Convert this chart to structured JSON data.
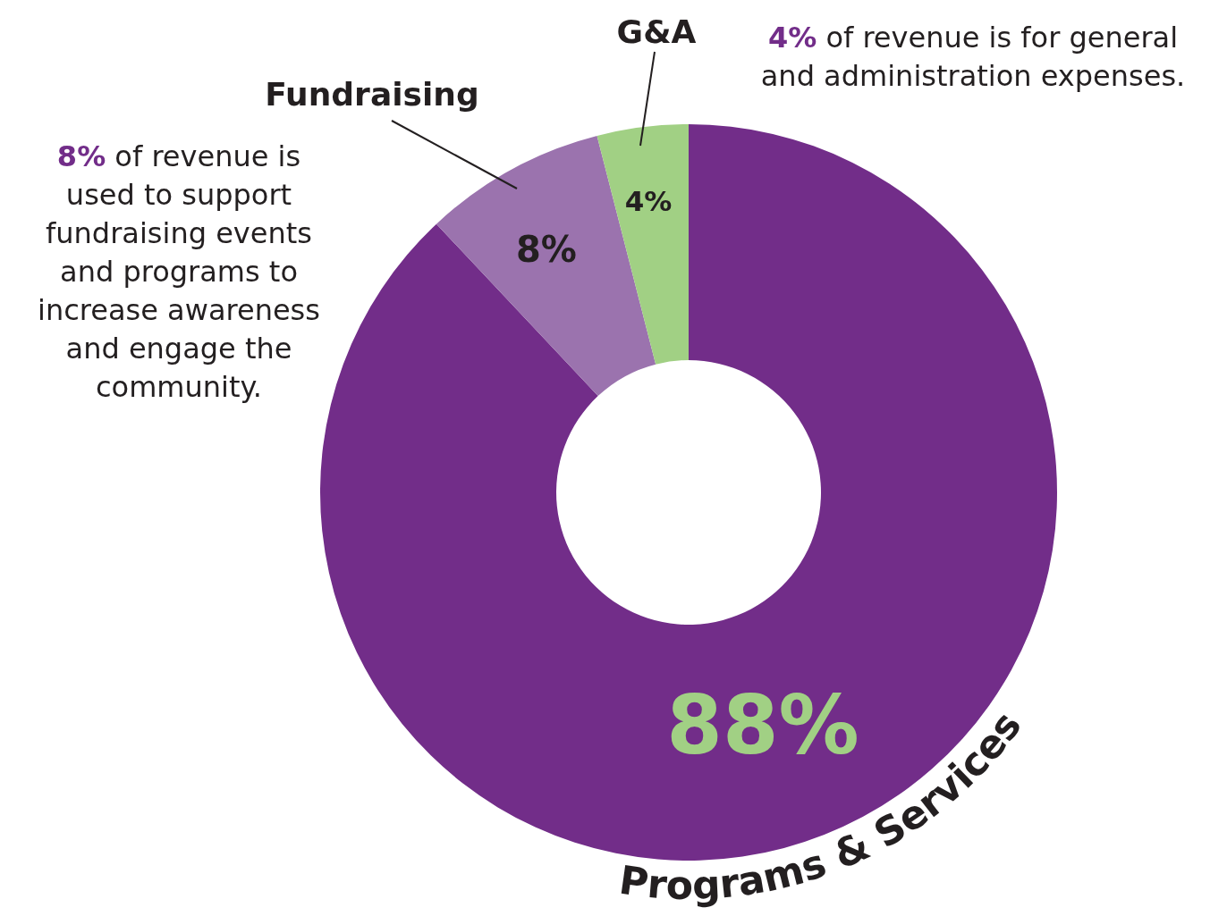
{
  "chart_data": {
    "type": "donut",
    "categories": [
      "Programs & Services",
      "Fundraising",
      "G&A"
    ],
    "values": [
      88,
      8,
      4
    ],
    "colors": [
      "#722d89",
      "#9b73ae",
      "#a1d084"
    ],
    "value_labels": [
      "88%",
      "8%",
      "4%"
    ],
    "annotations": [
      "4% of revenue is for general\nand administration expenses.",
      "8% of revenue is\nused to support\nfundraising events\nand programs to\nincrease awareness\nand engage the\ncommunity."
    ]
  }
}
